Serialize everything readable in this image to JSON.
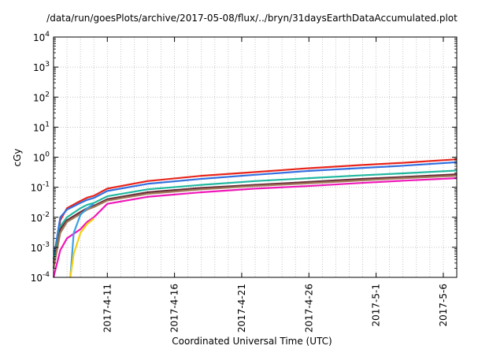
{
  "chart_data": {
    "type": "line",
    "title": "/data/run/goesPlots/archive/2017-05-08/flux/../bryn/31daysEarthDataAccumulated.plot",
    "xlabel": "Coordinated Universal Time (UTC)",
    "ylabel": "cGy",
    "y_scale": "log",
    "ylim": [
      0.0001,
      10000
    ],
    "y_ticks": [
      {
        "value": 0.0001,
        "base": "10",
        "exp": "-4"
      },
      {
        "value": 0.001,
        "base": "10",
        "exp": "-3"
      },
      {
        "value": 0.01,
        "base": "10",
        "exp": "-2"
      },
      {
        "value": 0.1,
        "base": "10",
        "exp": "-1"
      },
      {
        "value": 1,
        "base": "10",
        "exp": "0"
      },
      {
        "value": 10,
        "base": "10",
        "exp": "1"
      },
      {
        "value": 100,
        "base": "10",
        "exp": "2"
      },
      {
        "value": 1000,
        "base": "10",
        "exp": "3"
      },
      {
        "value": 10000,
        "base": "10",
        "exp": "4"
      }
    ],
    "xlim": [
      "2017-04-07",
      "2017-05-07"
    ],
    "x_ticks": [
      "2017-4-11",
      "2017-4-16",
      "2017-4-21",
      "2017-4-26",
      "2017-5-1",
      "2017-5-6"
    ],
    "grid": true,
    "series": [
      {
        "color": "#e8251c",
        "points": [
          [
            "2017-04-07",
            0.0003
          ],
          [
            "2017-04-07T12:00",
            0.008
          ],
          [
            "2017-04-08",
            0.02
          ],
          [
            "2017-04-09",
            0.035
          ],
          [
            "2017-04-09T12:00",
            0.045
          ],
          [
            "2017-04-10",
            0.052
          ],
          [
            "2017-04-11",
            0.09
          ],
          [
            "2017-04-14",
            0.16
          ],
          [
            "2017-04-18",
            0.24
          ],
          [
            "2017-04-22",
            0.32
          ],
          [
            "2017-04-26",
            0.43
          ],
          [
            "2017-04-30",
            0.55
          ],
          [
            "2017-05-03",
            0.65
          ],
          [
            "2017-05-07",
            0.85
          ]
        ]
      },
      {
        "color": "#3370e0",
        "points": [
          [
            "2017-04-07",
            0.0004
          ],
          [
            "2017-04-07T12:00",
            0.01
          ],
          [
            "2017-04-08",
            0.018
          ],
          [
            "2017-04-09",
            0.03
          ],
          [
            "2017-04-09T12:00",
            0.038
          ],
          [
            "2017-04-10",
            0.044
          ],
          [
            "2017-04-11",
            0.075
          ],
          [
            "2017-04-14",
            0.13
          ],
          [
            "2017-04-18",
            0.19
          ],
          [
            "2017-04-22",
            0.26
          ],
          [
            "2017-04-26",
            0.35
          ],
          [
            "2017-04-30",
            0.44
          ],
          [
            "2017-05-03",
            0.52
          ],
          [
            "2017-05-07",
            0.68
          ]
        ]
      },
      {
        "color": "#20b8a0",
        "points": [
          [
            "2017-04-07",
            0.0003
          ],
          [
            "2017-04-07T12:00",
            0.005
          ],
          [
            "2017-04-08",
            0.01
          ],
          [
            "2017-04-09",
            0.02
          ],
          [
            "2017-04-09T12:00",
            0.026
          ],
          [
            "2017-04-10",
            0.03
          ],
          [
            "2017-04-11",
            0.05
          ],
          [
            "2017-04-14",
            0.085
          ],
          [
            "2017-04-18",
            0.12
          ],
          [
            "2017-04-22",
            0.16
          ],
          [
            "2017-04-26",
            0.2
          ],
          [
            "2017-04-30",
            0.25
          ],
          [
            "2017-05-03",
            0.29
          ],
          [
            "2017-05-07",
            0.36
          ]
        ]
      },
      {
        "color": "#6a2d3a",
        "points": [
          [
            "2017-04-07",
            0.0002
          ],
          [
            "2017-04-07T12:00",
            0.004
          ],
          [
            "2017-04-08",
            0.008
          ],
          [
            "2017-04-09",
            0.015
          ],
          [
            "2017-04-09T12:00",
            0.02
          ],
          [
            "2017-04-10",
            0.024
          ],
          [
            "2017-04-11",
            0.04
          ],
          [
            "2017-04-14",
            0.068
          ],
          [
            "2017-04-18",
            0.095
          ],
          [
            "2017-04-22",
            0.12
          ],
          [
            "2017-04-26",
            0.15
          ],
          [
            "2017-04-30",
            0.19
          ],
          [
            "2017-05-03",
            0.22
          ],
          [
            "2017-05-07",
            0.27
          ]
        ]
      },
      {
        "color": "#a07a5a",
        "points": [
          [
            "2017-04-07",
            0.0002
          ],
          [
            "2017-04-07T12:00",
            0.003
          ],
          [
            "2017-04-08",
            0.007
          ],
          [
            "2017-04-09",
            0.013
          ],
          [
            "2017-04-09T12:00",
            0.018
          ],
          [
            "2017-04-10",
            0.022
          ],
          [
            "2017-04-11",
            0.036
          ],
          [
            "2017-04-14",
            0.06
          ],
          [
            "2017-04-18",
            0.085
          ],
          [
            "2017-04-22",
            0.11
          ],
          [
            "2017-04-26",
            0.135
          ],
          [
            "2017-04-30",
            0.17
          ],
          [
            "2017-05-03",
            0.2
          ],
          [
            "2017-05-07",
            0.24
          ]
        ]
      },
      {
        "color": "#f018b8",
        "points": [
          [
            "2017-04-07",
            0.0001
          ],
          [
            "2017-04-07T12:00",
            0.0008
          ],
          [
            "2017-04-08",
            0.002
          ],
          [
            "2017-04-09",
            0.004
          ],
          [
            "2017-04-09T12:00",
            0.007
          ],
          [
            "2017-04-10",
            0.01
          ],
          [
            "2017-04-11",
            0.028
          ],
          [
            "2017-04-14",
            0.048
          ],
          [
            "2017-04-18",
            0.068
          ],
          [
            "2017-04-22",
            0.09
          ],
          [
            "2017-04-26",
            0.11
          ],
          [
            "2017-04-30",
            0.14
          ],
          [
            "2017-05-03",
            0.165
          ],
          [
            "2017-05-07",
            0.2
          ]
        ]
      },
      {
        "color": "#3da0e8",
        "points": [
          [
            "2017-04-08T06:00",
            0.0001
          ],
          [
            "2017-04-08T12:00",
            0.003
          ],
          [
            "2017-04-09",
            0.012
          ],
          [
            "2017-04-09T12:00",
            0.02
          ],
          [
            "2017-04-10",
            0.028
          ]
        ]
      },
      {
        "color": "#f5d010",
        "points": [
          [
            "2017-04-08T06:00",
            0.0001
          ],
          [
            "2017-04-08T12:00",
            0.0006
          ],
          [
            "2017-04-09",
            0.003
          ],
          [
            "2017-04-09T12:00",
            0.006
          ],
          [
            "2017-04-10",
            0.009
          ]
        ]
      }
    ]
  }
}
